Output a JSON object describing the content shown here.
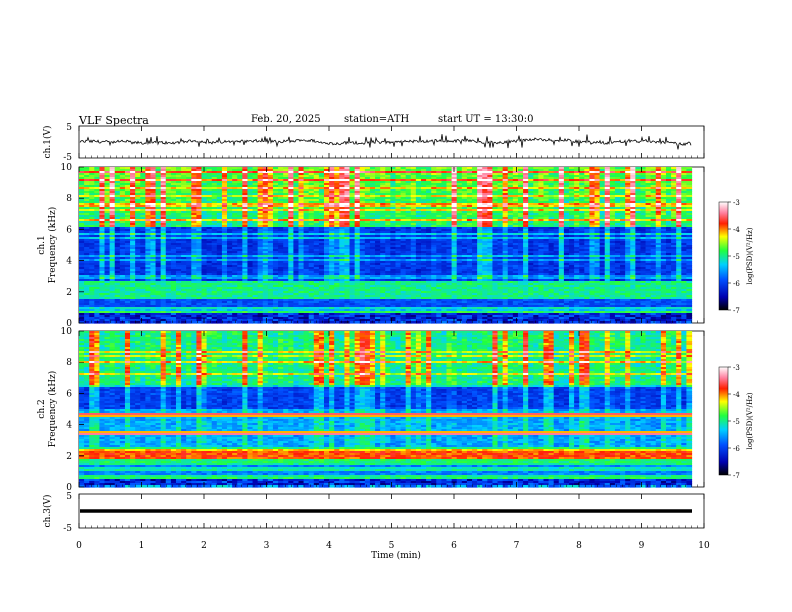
{
  "header": {
    "title": "VLF  Spectra",
    "date": "Feb. 20, 2025",
    "station": "station=ATH",
    "start": "start  UT  =   13:30:0"
  },
  "chart_data": [
    {
      "type": "line",
      "panel": "ch1-waveform",
      "ylabel": "ch.1(V)",
      "ylim": [
        -5,
        5
      ],
      "y_ticks": [
        "5",
        "-5"
      ],
      "xlim": [
        0,
        10
      ],
      "series_color": "#000000",
      "description_values": "noisy voltage trace near 0 V with spikes to about ±1.5 V"
    },
    {
      "type": "heatmap",
      "panel": "ch1-spectrogram",
      "ylabel": "ch.1\nFrequency  (kHz)",
      "ylabel_line1": "ch.1",
      "ylabel_line2": "Frequency  (kHz)",
      "ylim": [
        0,
        10
      ],
      "y_ticks": [
        "0",
        "2",
        "4",
        "6",
        "8",
        "10"
      ],
      "xlim": [
        0,
        10
      ],
      "data_end_min": 9.8,
      "colorbar": {
        "label": "log(PSD)(V²/Hz)",
        "ticks": [
          "-3",
          "-4",
          "-5",
          "-6",
          "-7"
        ],
        "range": [
          -7,
          -3
        ]
      }
    },
    {
      "type": "heatmap",
      "panel": "ch2-spectrogram",
      "ylabel_line1": "ch.2",
      "ylabel_line2": "Frequency  (kHz)",
      "ylim": [
        0,
        10
      ],
      "y_ticks": [
        "0",
        "2",
        "4",
        "6",
        "8",
        "10"
      ],
      "xlim": [
        0,
        10
      ],
      "data_end_min": 9.8,
      "colorbar": {
        "label": "log(PSD)(V²/Hz)",
        "ticks": [
          "-3",
          "-4",
          "-5",
          "-6",
          "-7"
        ],
        "range": [
          -7,
          -3
        ]
      }
    },
    {
      "type": "line",
      "panel": "ch3-waveform",
      "ylabel": "ch.3(V)",
      "ylim": [
        -5,
        5
      ],
      "y_ticks": [
        "5",
        "-5"
      ],
      "xlim": [
        0,
        10
      ],
      "series_color": "#000000"
    }
  ],
  "x_axis": {
    "label": "Time  (min)",
    "ticks": [
      "0",
      "1",
      "2",
      "3",
      "4",
      "5",
      "6",
      "7",
      "8",
      "9",
      "10"
    ]
  }
}
